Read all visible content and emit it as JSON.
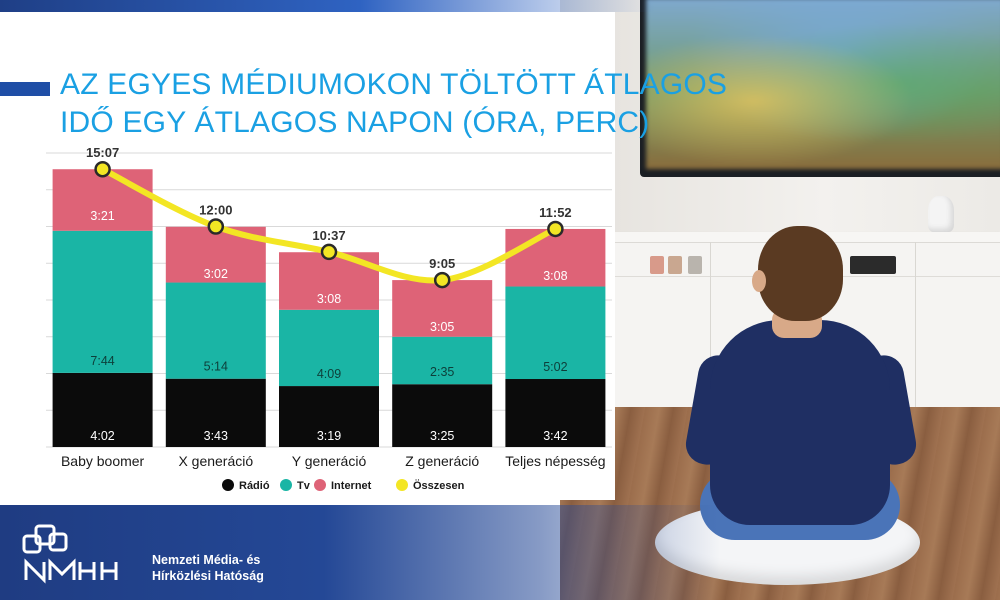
{
  "title_lines": [
    "AZ EGYES MÉDIUMOKON TÖLTÖTT ÁTLAGOS",
    "IDŐ EGY ÁTLAGOS NAPON (ÓRA, PERC)"
  ],
  "org": {
    "lines": [
      "Nemzeti Média- és",
      "Hírközlési Hatóság"
    ]
  },
  "colors": {
    "radio": "#0b0b0b",
    "tv": "#1ab5a5",
    "internet": "#de6377",
    "osszesen": "#f3e624",
    "title": "#1aa0e3",
    "brand": "#1f4ea6"
  },
  "chart_data": {
    "type": "bar",
    "stacked": true,
    "title": "AZ EGYES MÉDIUMOKON TÖLTÖTT ÁTLAGOS IDŐ EGY ÁTLAGOS NAPON (ÓRA, PERC)",
    "categories": [
      "Baby boomer",
      "X generáció",
      "Y generáció",
      "Z generáció",
      "Teljes népesség"
    ],
    "unit": "minutes",
    "grid": true,
    "legend_position": "bottom",
    "series": [
      {
        "name": "Rádió",
        "key": "radio",
        "values": [
          242,
          223,
          199,
          205,
          222
        ],
        "labels": [
          "4:02",
          "3:43",
          "3:19",
          "3:25",
          "3:42"
        ]
      },
      {
        "name": "Tv",
        "key": "tv",
        "values": [
          464,
          314,
          249,
          155,
          302
        ],
        "labels": [
          "7:44",
          "5:14",
          "4:09",
          "2:35",
          "5:02"
        ]
      },
      {
        "name": "Internet",
        "key": "internet",
        "values": [
          201,
          182,
          188,
          185,
          188
        ],
        "labels": [
          "3:21",
          "3:02",
          "3:08",
          "3:05",
          "3:08"
        ]
      }
    ],
    "line": {
      "name": "Összesen",
      "key": "osszesen",
      "values": [
        907,
        720,
        637,
        545,
        712
      ],
      "labels": [
        "15:07",
        "12:00",
        "10:37",
        "9:05",
        "11:52"
      ]
    }
  }
}
